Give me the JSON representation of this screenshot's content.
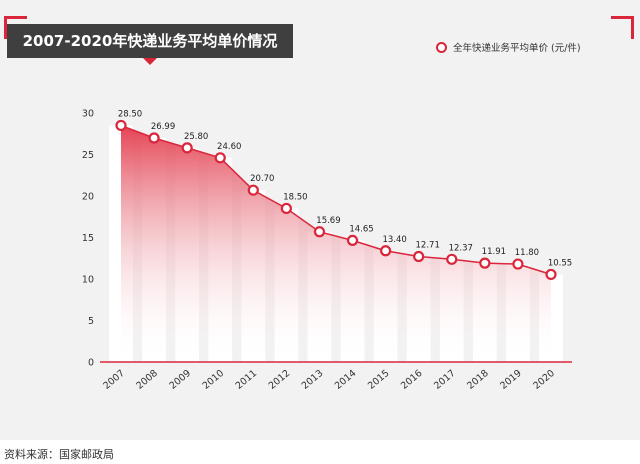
{
  "chart_data": {
    "type": "line",
    "title": "2007-2020年快递业务平均单价情况",
    "categories": [
      "2007",
      "2008",
      "2009",
      "2010",
      "2011",
      "2012",
      "2013",
      "2014",
      "2015",
      "2016",
      "2017",
      "2018",
      "2019",
      "2020"
    ],
    "series": [
      {
        "name": "全年快递业务平均单价 (元/件)",
        "values": [
          28.5,
          26.99,
          25.8,
          24.6,
          20.7,
          18.5,
          15.69,
          14.65,
          13.4,
          12.71,
          12.37,
          11.91,
          11.8,
          10.55
        ]
      }
    ],
    "data_labels": [
      "28.50",
      "26.99",
      "25.80",
      "24.60",
      "20.70",
      "18.50",
      "15.69",
      "14.65",
      "13.40",
      "12.71",
      "12.37",
      "11.91",
      "11.80",
      "10.55"
    ],
    "yticks": [
      "0",
      "5",
      "10",
      "15",
      "20",
      "25",
      "30"
    ],
    "ylim": [
      0,
      30
    ],
    "grid": false,
    "legend_position": "top-right",
    "colors": {
      "line": "#d9263b",
      "area": "#e4394b",
      "panel": "#f2f2f2",
      "title_bg": "#3f3f3f"
    }
  },
  "header": {
    "title": "2007-2020年快递业务平均单价情况"
  },
  "legend": {
    "label": "全年快递业务平均单价 (元/件)"
  },
  "footer": {
    "source": "资料来源：国家邮政局"
  }
}
